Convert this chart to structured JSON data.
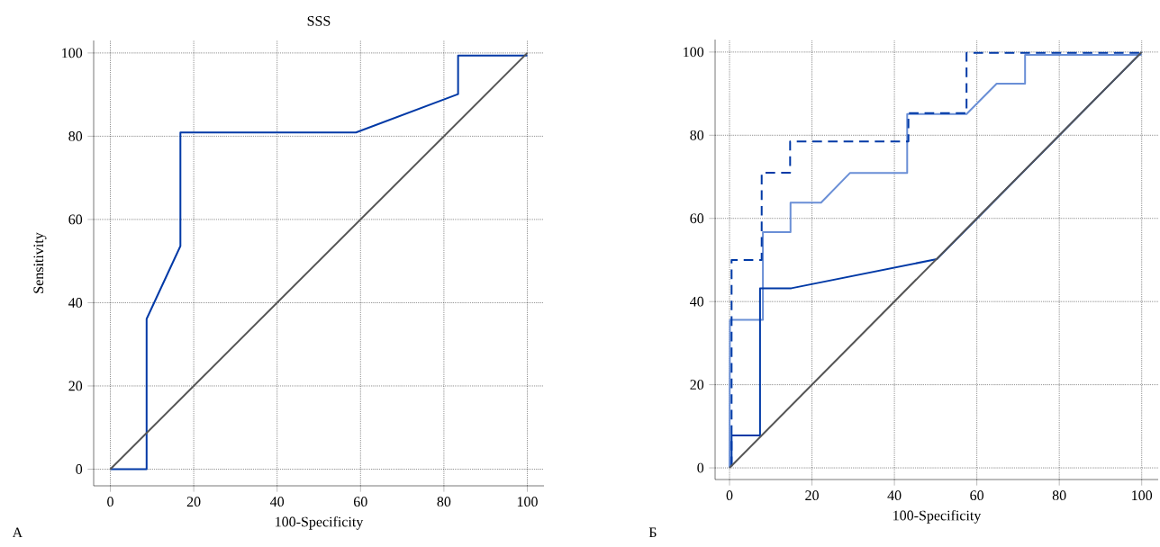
{
  "chart_data": [
    {
      "type": "line",
      "title": "SSS",
      "xlabel": "100-Specificity",
      "ylabel": "Sensitivity",
      "annotations": [
        "А"
      ],
      "xlim": [
        -4,
        104
      ],
      "ylim": [
        -4,
        103
      ],
      "xticks": [
        0,
        20,
        40,
        60,
        80,
        100
      ],
      "yticks": [
        0,
        20,
        40,
        60,
        80,
        100
      ],
      "grid": true,
      "series": [
        {
          "color": "#0039a6",
          "x": [
            0,
            8.7,
            8.7,
            16.8,
            16.8,
            58.9,
            83.4,
            83.4,
            100
          ],
          "values": [
            0,
            0,
            36.1,
            53.6,
            80.9,
            80.9,
            90.1,
            99.4,
            99.4
          ]
        },
        {
          "color": "#555555",
          "x": [
            0,
            100
          ],
          "values": [
            0,
            100
          ]
        }
      ]
    },
    {
      "type": "line",
      "xlabel": "100-Specificity",
      "annotations": [
        "Б"
      ],
      "xlim": [
        -3.5,
        104
      ],
      "ylim": [
        -2.8,
        103
      ],
      "xticks": [
        0,
        20,
        40,
        60,
        80,
        100
      ],
      "yticks": [
        0,
        20,
        40,
        60,
        80,
        100
      ],
      "grid": true,
      "series": [
        {
          "color": "#6a8fd6",
          "line_style": "solid",
          "x": [
            0,
            0.1,
            8.1,
            8.1,
            14.8,
            14.8,
            22.2,
            29.2,
            43.1,
            43.1,
            57.5,
            64.8,
            71.7,
            71.7,
            100
          ],
          "values": [
            0,
            35.6,
            35.6,
            56.7,
            56.7,
            63.8,
            63.8,
            70.9,
            70.9,
            85.1,
            85.1,
            92.4,
            92.4,
            99.3,
            99.3
          ]
        },
        {
          "color": "#0039a6",
          "line_style": "dashed",
          "x": [
            0.5,
            0.5,
            7.8,
            7.8,
            14.7,
            14.7,
            43.4,
            43.4,
            57.5,
            57.5,
            100
          ],
          "values": [
            0.4,
            50,
            50,
            71,
            71,
            78.5,
            78.5,
            85.3,
            85.3,
            99.8,
            99.8
          ]
        },
        {
          "color": "#0039a6",
          "line_style": "solid",
          "x": [
            0.5,
            0.5,
            7.4,
            7.4,
            15.0,
            50.3,
            100
          ],
          "values": [
            0.4,
            7.8,
            7.8,
            43.2,
            43.2,
            50.2,
            100
          ]
        },
        {
          "color": "#555555",
          "x": [
            0,
            100
          ],
          "values": [
            0,
            100
          ]
        }
      ]
    }
  ]
}
